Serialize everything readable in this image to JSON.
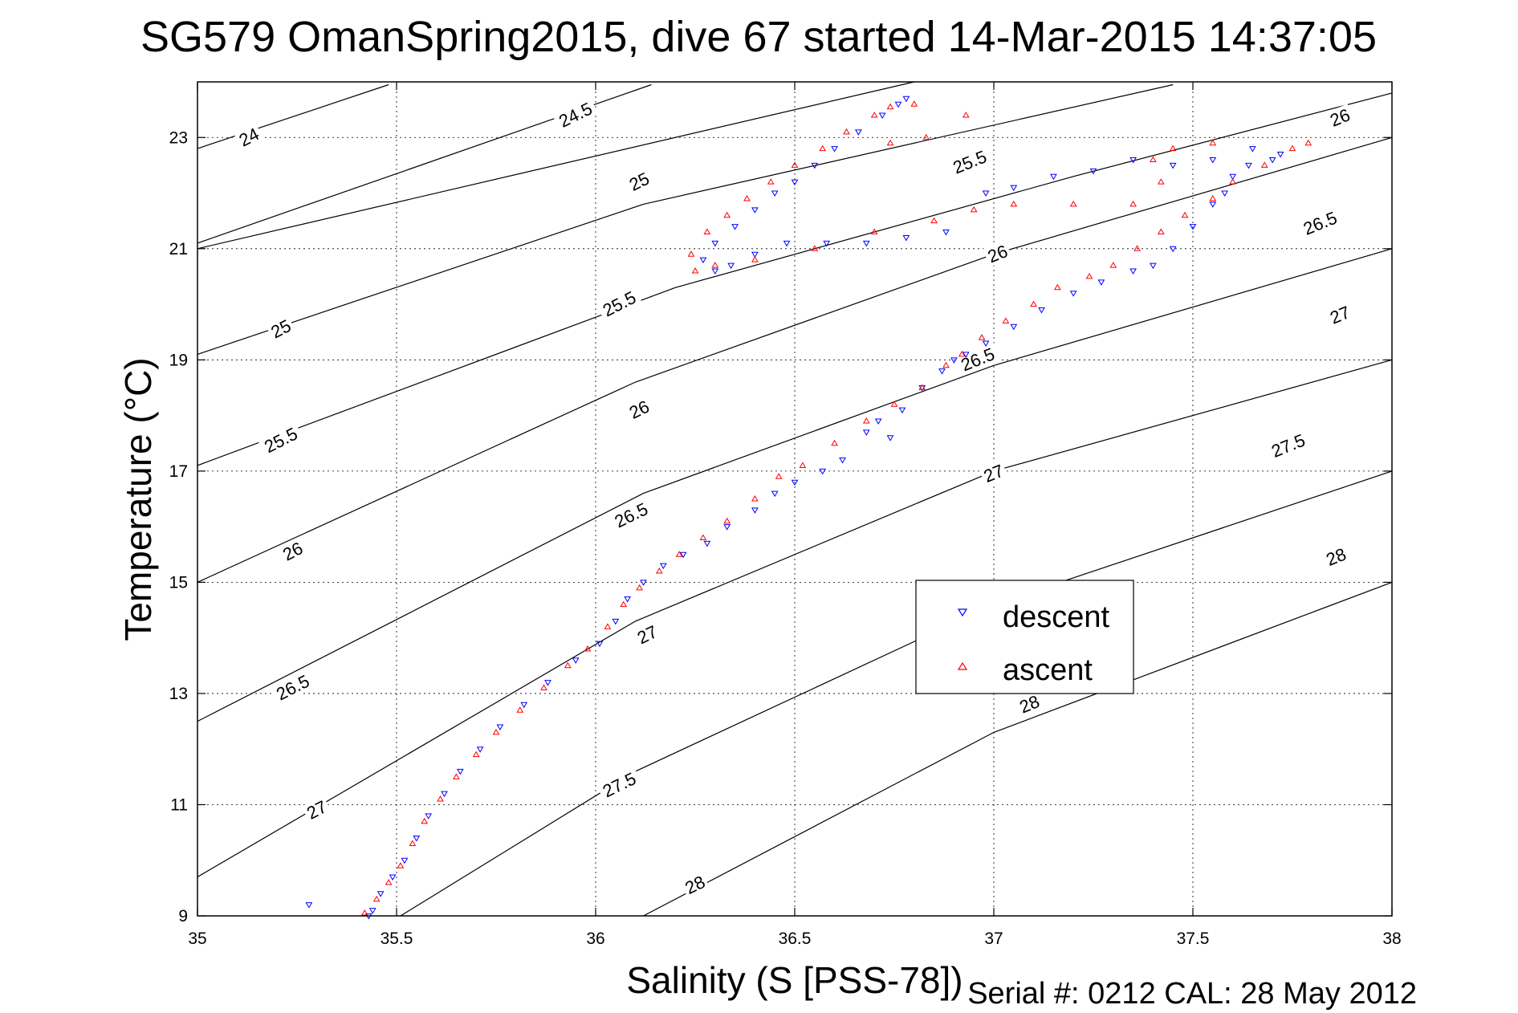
{
  "chart_data": {
    "type": "scatter",
    "title": "SG579 OmanSpring2015, dive 67 started 14-Mar-2015 14:37:05",
    "xlabel": "Salinity (S [PSS-78])",
    "ylabel": "Temperature (°C)",
    "xlim": [
      35,
      38
    ],
    "ylim": [
      9,
      24
    ],
    "xticks": [
      35,
      35.5,
      36,
      36.5,
      37,
      37.5,
      38
    ],
    "xtick_labels": [
      "35",
      "35.5",
      "36",
      "36.5",
      "37",
      "37.5",
      "38"
    ],
    "yticks": [
      9,
      11,
      13,
      15,
      17,
      19,
      21,
      23
    ],
    "ytick_labels": [
      "9",
      "11",
      "13",
      "15",
      "17",
      "19",
      "21",
      "23"
    ],
    "grid": true,
    "legend_position": "center-right",
    "footer": "Serial #: 0212  CAL: 28 May 2012",
    "series": [
      {
        "name": "descent",
        "marker": "triangle-down",
        "color": "#0000ff",
        "points": [
          [
            35.28,
            9.2
          ],
          [
            35.43,
            9.0
          ],
          [
            35.44,
            9.1
          ],
          [
            35.46,
            9.4
          ],
          [
            35.49,
            9.7
          ],
          [
            35.52,
            10.0
          ],
          [
            35.55,
            10.4
          ],
          [
            35.58,
            10.8
          ],
          [
            35.62,
            11.2
          ],
          [
            35.66,
            11.6
          ],
          [
            35.71,
            12.0
          ],
          [
            35.76,
            12.4
          ],
          [
            35.82,
            12.8
          ],
          [
            35.88,
            13.2
          ],
          [
            35.95,
            13.6
          ],
          [
            36.01,
            13.9
          ],
          [
            36.05,
            14.3
          ],
          [
            36.08,
            14.7
          ],
          [
            36.12,
            15.0
          ],
          [
            36.17,
            15.3
          ],
          [
            36.22,
            15.5
          ],
          [
            36.28,
            15.7
          ],
          [
            36.33,
            16.0
          ],
          [
            36.4,
            16.3
          ],
          [
            36.45,
            16.6
          ],
          [
            36.5,
            16.8
          ],
          [
            36.57,
            17.0
          ],
          [
            36.62,
            17.2
          ],
          [
            36.68,
            17.7
          ],
          [
            36.71,
            17.9
          ],
          [
            36.74,
            17.6
          ],
          [
            36.77,
            18.1
          ],
          [
            36.82,
            18.5
          ],
          [
            36.87,
            18.8
          ],
          [
            36.9,
            19.0
          ],
          [
            36.93,
            19.1
          ],
          [
            36.98,
            19.3
          ],
          [
            37.05,
            19.6
          ],
          [
            37.12,
            19.9
          ],
          [
            37.2,
            20.2
          ],
          [
            37.27,
            20.4
          ],
          [
            37.35,
            20.6
          ],
          [
            37.4,
            20.7
          ],
          [
            37.45,
            21.0
          ],
          [
            37.5,
            21.4
          ],
          [
            37.55,
            21.8
          ],
          [
            37.58,
            22.0
          ],
          [
            37.6,
            22.3
          ],
          [
            37.64,
            22.5
          ],
          [
            37.7,
            22.6
          ],
          [
            37.72,
            22.7
          ],
          [
            37.65,
            22.8
          ],
          [
            37.55,
            22.6
          ],
          [
            37.45,
            22.5
          ],
          [
            37.35,
            22.6
          ],
          [
            37.25,
            22.4
          ],
          [
            37.15,
            22.3
          ],
          [
            37.05,
            22.1
          ],
          [
            36.98,
            22.0
          ],
          [
            36.88,
            21.3
          ],
          [
            36.78,
            21.2
          ],
          [
            36.68,
            21.1
          ],
          [
            36.58,
            21.1
          ],
          [
            36.48,
            21.1
          ],
          [
            36.4,
            20.9
          ],
          [
            36.34,
            20.7
          ],
          [
            36.3,
            20.6
          ],
          [
            36.27,
            20.8
          ],
          [
            36.3,
            21.1
          ],
          [
            36.35,
            21.4
          ],
          [
            36.4,
            21.7
          ],
          [
            36.45,
            22.0
          ],
          [
            36.5,
            22.2
          ],
          [
            36.55,
            22.5
          ],
          [
            36.6,
            22.8
          ],
          [
            36.66,
            23.1
          ],
          [
            36.72,
            23.4
          ],
          [
            36.76,
            23.6
          ],
          [
            36.78,
            23.7
          ]
        ]
      },
      {
        "name": "ascent",
        "marker": "triangle-up",
        "color": "#ff0000",
        "points": [
          [
            35.42,
            9.05
          ],
          [
            35.45,
            9.3
          ],
          [
            35.48,
            9.6
          ],
          [
            35.51,
            9.9
          ],
          [
            35.54,
            10.3
          ],
          [
            35.57,
            10.7
          ],
          [
            35.61,
            11.1
          ],
          [
            35.65,
            11.5
          ],
          [
            35.7,
            11.9
          ],
          [
            35.75,
            12.3
          ],
          [
            35.81,
            12.7
          ],
          [
            35.87,
            13.1
          ],
          [
            35.93,
            13.5
          ],
          [
            35.98,
            13.8
          ],
          [
            36.03,
            14.2
          ],
          [
            36.07,
            14.6
          ],
          [
            36.11,
            14.9
          ],
          [
            36.16,
            15.2
          ],
          [
            36.21,
            15.5
          ],
          [
            36.27,
            15.8
          ],
          [
            36.33,
            16.1
          ],
          [
            36.4,
            16.5
          ],
          [
            36.46,
            16.9
          ],
          [
            36.52,
            17.1
          ],
          [
            36.6,
            17.5
          ],
          [
            36.68,
            17.9
          ],
          [
            36.75,
            18.2
          ],
          [
            36.82,
            18.5
          ],
          [
            36.88,
            18.9
          ],
          [
            36.92,
            19.1
          ],
          [
            36.97,
            19.4
          ],
          [
            37.03,
            19.7
          ],
          [
            37.1,
            20.0
          ],
          [
            37.16,
            20.3
          ],
          [
            37.24,
            20.5
          ],
          [
            37.3,
            20.7
          ],
          [
            37.36,
            21.0
          ],
          [
            37.42,
            21.3
          ],
          [
            37.48,
            21.6
          ],
          [
            37.55,
            21.9
          ],
          [
            37.6,
            22.2
          ],
          [
            37.68,
            22.5
          ],
          [
            37.75,
            22.8
          ],
          [
            37.79,
            22.9
          ],
          [
            37.55,
            22.9
          ],
          [
            37.45,
            22.8
          ],
          [
            37.4,
            22.6
          ],
          [
            37.42,
            22.2
          ],
          [
            37.35,
            21.8
          ],
          [
            37.2,
            21.8
          ],
          [
            37.05,
            21.8
          ],
          [
            36.95,
            21.7
          ],
          [
            36.85,
            21.5
          ],
          [
            36.7,
            21.3
          ],
          [
            36.55,
            21.0
          ],
          [
            36.4,
            20.8
          ],
          [
            36.3,
            20.7
          ],
          [
            36.25,
            20.6
          ],
          [
            36.24,
            20.9
          ],
          [
            36.28,
            21.3
          ],
          [
            36.33,
            21.6
          ],
          [
            36.38,
            21.9
          ],
          [
            36.44,
            22.2
          ],
          [
            36.5,
            22.5
          ],
          [
            36.57,
            22.8
          ],
          [
            36.63,
            23.1
          ],
          [
            36.7,
            23.4
          ],
          [
            36.74,
            23.55
          ],
          [
            36.8,
            23.6
          ],
          [
            36.93,
            23.4
          ],
          [
            36.83,
            23.0
          ],
          [
            36.74,
            22.9
          ]
        ]
      }
    ],
    "density_contours": [
      {
        "label": "24",
        "points": [
          [
            35.0,
            22.8
          ],
          [
            35.48,
            23.95
          ]
        ]
      },
      {
        "label": "24.5",
        "points": [
          [
            35.0,
            21.1
          ],
          [
            36.14,
            23.95
          ]
        ]
      },
      {
        "label": "25",
        "points": [
          [
            35.0,
            21.0
          ],
          [
            36.8,
            24.0
          ]
        ]
      },
      {
        "label": "25",
        "points": [
          [
            35.0,
            19.1
          ],
          [
            36.12,
            21.8
          ],
          [
            37.45,
            23.95
          ]
        ]
      },
      {
        "label": "25.5",
        "points": [
          [
            35.0,
            17.1
          ],
          [
            36.2,
            20.3
          ],
          [
            37.2,
            22.3
          ],
          [
            38.0,
            23.8
          ]
        ]
      },
      {
        "label": "26",
        "points": [
          [
            35.0,
            15.0
          ],
          [
            36.1,
            18.6
          ],
          [
            37.0,
            20.9
          ],
          [
            38.0,
            23.0
          ]
        ]
      },
      {
        "label": "26.5",
        "points": [
          [
            35.0,
            12.5
          ],
          [
            36.12,
            16.6
          ],
          [
            37.0,
            18.9
          ],
          [
            38.0,
            21.0
          ]
        ]
      },
      {
        "label": "27",
        "points": [
          [
            35.0,
            9.7
          ],
          [
            36.1,
            14.3
          ],
          [
            37.0,
            17.0
          ],
          [
            38.0,
            19.0
          ]
        ]
      },
      {
        "label": "27.5",
        "points": [
          [
            35.51,
            9.0
          ],
          [
            36.1,
            11.6
          ],
          [
            37.0,
            14.6
          ],
          [
            38.0,
            17.0
          ]
        ]
      },
      {
        "label": "28",
        "points": [
          [
            36.12,
            9.0
          ],
          [
            37.0,
            12.3
          ],
          [
            38.0,
            15.0
          ]
        ]
      }
    ],
    "contour_labels": [
      {
        "text": "24",
        "s": 35.13,
        "t": 23.0,
        "angle": -27
      },
      {
        "text": "24.5",
        "s": 35.95,
        "t": 23.4,
        "angle": -26
      },
      {
        "text": "25",
        "s": 36.11,
        "t": 22.2,
        "angle": -26
      },
      {
        "text": "25.5",
        "s": 36.94,
        "t": 22.55,
        "angle": -22
      },
      {
        "text": "26",
        "s": 37.87,
        "t": 23.35,
        "angle": -22
      },
      {
        "text": "26",
        "s": 37.01,
        "t": 20.9,
        "angle": -22
      },
      {
        "text": "26.5",
        "s": 37.82,
        "t": 21.45,
        "angle": -22
      },
      {
        "text": "27",
        "s": 37.87,
        "t": 19.8,
        "angle": -22
      },
      {
        "text": "25",
        "s": 35.21,
        "t": 19.55,
        "angle": -27
      },
      {
        "text": "25.5",
        "s": 36.06,
        "t": 20.0,
        "angle": -27
      },
      {
        "text": "26.5",
        "s": 36.96,
        "t": 19.0,
        "angle": -22
      },
      {
        "text": "27.5",
        "s": 37.74,
        "t": 17.45,
        "angle": -22
      },
      {
        "text": "25.5",
        "s": 35.21,
        "t": 17.55,
        "angle": -27
      },
      {
        "text": "26",
        "s": 36.11,
        "t": 18.1,
        "angle": -26
      },
      {
        "text": "27",
        "s": 37.0,
        "t": 16.95,
        "angle": -22
      },
      {
        "text": "28",
        "s": 37.86,
        "t": 15.45,
        "angle": -22
      },
      {
        "text": "26",
        "s": 35.24,
        "t": 15.55,
        "angle": -27
      },
      {
        "text": "26.5",
        "s": 36.09,
        "t": 16.2,
        "angle": -26
      },
      {
        "text": "27",
        "s": 36.13,
        "t": 14.05,
        "angle": -26
      },
      {
        "text": "28",
        "s": 37.09,
        "t": 12.8,
        "angle": -22
      },
      {
        "text": "26.5",
        "s": 35.24,
        "t": 13.1,
        "angle": -27
      },
      {
        "text": "27.5",
        "s": 36.06,
        "t": 11.35,
        "angle": -26
      },
      {
        "text": "27",
        "s": 35.3,
        "t": 10.9,
        "angle": -27
      },
      {
        "text": "28",
        "s": 36.25,
        "t": 9.55,
        "angle": -26
      }
    ]
  }
}
